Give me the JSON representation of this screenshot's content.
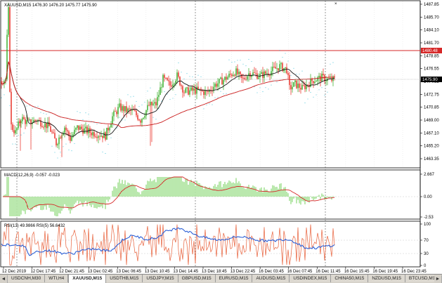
{
  "window": {
    "close_glyph": "×",
    "colors": {
      "bg": "#ffffff",
      "grid": "#c8c8c8",
      "up": "#2eaa1e",
      "down": "#e8231a",
      "ma": "#c91a1a",
      "maSlow": "#141414",
      "sar": "#3fc1d8",
      "level": "#d62828",
      "vline": "#555555",
      "rsiMain": "#2b5fd6",
      "rsiSignal": "#e8603a",
      "macdHist": "#66cc4a",
      "macdSig": "#d62828"
    }
  },
  "header": {
    "symbol_info": "XAUUSD,M15  1476.30 1476.20 1475.77 1475.90"
  },
  "price_axis": {
    "ticks": [
      "1487.85",
      "1485.70",
      "1484.10",
      "1481.70",
      "1478.85",
      "1476.55",
      "1474.65",
      "1472.75",
      "1470.85",
      "1469.00",
      "1467.10",
      "1465.20",
      "1463.35"
    ],
    "current_price": "1475.90",
    "level_label": "1480.48"
  },
  "macd": {
    "label": "MACD(12,26,9) -0.057 -0.023",
    "ticks": [
      "2.667",
      "0.00",
      "-2.53"
    ]
  },
  "rsi": {
    "label": "RSI(13) 49.9866  RSI(5) 56.6432",
    "ticks": [
      "100",
      "70",
      "30",
      "0"
    ]
  },
  "time_axis": {
    "labels": [
      "12 Dec 2019",
      "12 Dec 17:45",
      "12 Dec 21:45",
      "13 Dec 02:45",
      "13 Dec 06:45",
      "13 Dec 10:45",
      "13 Dec 14:45",
      "13 Dec 18:45",
      "13 Dec 22:45",
      "16 Dec 03:45",
      "16 Dec 07:45",
      "16 Dec 11:45",
      "16 Dec 15:45",
      "16 Dec 19:45",
      "16 Dec 23:45"
    ]
  },
  "tabs": {
    "nav_left": "◄",
    "nav_right": "►",
    "items": [
      "USDCNH,M30",
      "WTI,H4",
      "XAUUSD,M15",
      "USDTHB,M15",
      "USDJPY,M15",
      "GBPUSD,M15",
      "EURUSD,M15",
      "AUDUSD,M15",
      "USDINDEX,M15",
      "CHINA50,M15",
      "NZDUSD,M15",
      "BTCUSD,M15"
    ],
    "active_index": 2
  }
}
